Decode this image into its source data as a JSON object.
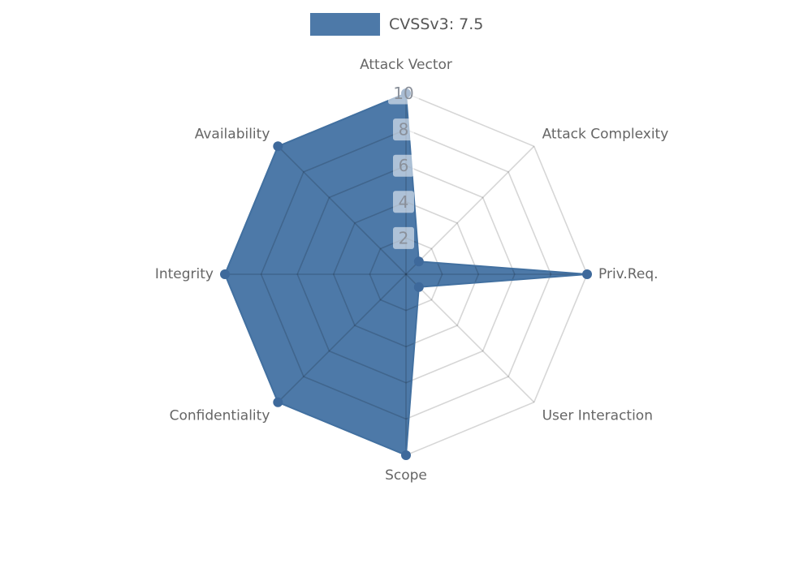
{
  "chart_data": {
    "type": "radar",
    "legend": {
      "label": "CVSSv3: 7.5",
      "position": "top-center"
    },
    "axes": [
      "Attack Vector",
      "Attack Complexity",
      "Priv.Req.",
      "User Interaction",
      "Scope",
      "Confidentiality",
      "Integrity",
      "Availability"
    ],
    "axis_order": "clockwise-from-top",
    "max": 10,
    "ticks": [
      2,
      4,
      6,
      8,
      10
    ],
    "tick_axis": "top",
    "grid": "spider-web",
    "series": [
      {
        "name": "CVSSv3: 7.5",
        "values": [
          10,
          1,
          10,
          1,
          10,
          10,
          10,
          10
        ]
      }
    ],
    "colors": {
      "fill": "#4d79a8",
      "outline": "#4270a0",
      "marker": "#3e699b",
      "grid_line": "rgba(0,0,0,0.16)",
      "tick_text": "#8a909a",
      "tick_box": "rgba(255,255,255,0.55)",
      "axis_label": "#666666",
      "legend_text": "#565656",
      "background": "#ffffff"
    }
  }
}
